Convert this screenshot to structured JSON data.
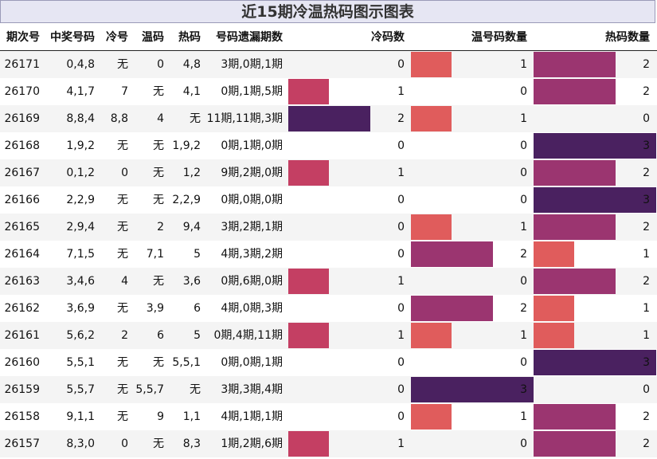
{
  "title": "近15期冷温热码图示图表",
  "colors": {
    "c1": "#e05c5c",
    "c2": "#9b3570",
    "c3": "#4a2160",
    "cold1": "#c43f63"
  },
  "chart_data": {
    "type": "table",
    "title": "近15期冷温热码图示图表",
    "columns": [
      "期次号",
      "中奖号码",
      "冷号",
      "温码",
      "热码",
      "号码遗漏期数",
      "冷码数",
      "温号码数量",
      "热码数量"
    ],
    "max_count": 3,
    "rows": [
      {
        "issue": "26171",
        "numbers": "0,4,8",
        "cold": "无",
        "warm": "0",
        "hot": "4,8",
        "miss": "3期,0期,1期",
        "cold_n": 0,
        "warm_n": 1,
        "hot_n": 2
      },
      {
        "issue": "26170",
        "numbers": "4,1,7",
        "cold": "7",
        "warm": "无",
        "hot": "4,1",
        "miss": "0期,1期,5期",
        "cold_n": 1,
        "warm_n": 0,
        "hot_n": 2
      },
      {
        "issue": "26169",
        "numbers": "8,8,4",
        "cold": "8,8",
        "warm": "4",
        "hot": "无",
        "miss": "11期,11期,3期",
        "cold_n": 2,
        "warm_n": 1,
        "hot_n": 0
      },
      {
        "issue": "26168",
        "numbers": "1,9,2",
        "cold": "无",
        "warm": "无",
        "hot": "1,9,2",
        "miss": "0期,1期,0期",
        "cold_n": 0,
        "warm_n": 0,
        "hot_n": 3
      },
      {
        "issue": "26167",
        "numbers": "0,1,2",
        "cold": "0",
        "warm": "无",
        "hot": "1,2",
        "miss": "9期,2期,0期",
        "cold_n": 1,
        "warm_n": 0,
        "hot_n": 2
      },
      {
        "issue": "26166",
        "numbers": "2,2,9",
        "cold": "无",
        "warm": "无",
        "hot": "2,2,9",
        "miss": "0期,0期,0期",
        "cold_n": 0,
        "warm_n": 0,
        "hot_n": 3
      },
      {
        "issue": "26165",
        "numbers": "2,9,4",
        "cold": "无",
        "warm": "2",
        "hot": "9,4",
        "miss": "3期,2期,1期",
        "cold_n": 0,
        "warm_n": 1,
        "hot_n": 2
      },
      {
        "issue": "26164",
        "numbers": "7,1,5",
        "cold": "无",
        "warm": "7,1",
        "hot": "5",
        "miss": "4期,3期,2期",
        "cold_n": 0,
        "warm_n": 2,
        "hot_n": 1
      },
      {
        "issue": "26163",
        "numbers": "3,4,6",
        "cold": "4",
        "warm": "无",
        "hot": "3,6",
        "miss": "0期,6期,0期",
        "cold_n": 1,
        "warm_n": 0,
        "hot_n": 2
      },
      {
        "issue": "26162",
        "numbers": "3,6,9",
        "cold": "无",
        "warm": "3,9",
        "hot": "6",
        "miss": "4期,0期,3期",
        "cold_n": 0,
        "warm_n": 2,
        "hot_n": 1
      },
      {
        "issue": "26161",
        "numbers": "5,6,2",
        "cold": "2",
        "warm": "6",
        "hot": "5",
        "miss": "0期,4期,11期",
        "cold_n": 1,
        "warm_n": 1,
        "hot_n": 1
      },
      {
        "issue": "26160",
        "numbers": "5,5,1",
        "cold": "无",
        "warm": "无",
        "hot": "5,5,1",
        "miss": "0期,0期,1期",
        "cold_n": 0,
        "warm_n": 0,
        "hot_n": 3
      },
      {
        "issue": "26159",
        "numbers": "5,5,7",
        "cold": "无",
        "warm": "5,5,7",
        "hot": "无",
        "miss": "3期,3期,4期",
        "cold_n": 0,
        "warm_n": 3,
        "hot_n": 0
      },
      {
        "issue": "26158",
        "numbers": "9,1,1",
        "cold": "无",
        "warm": "9",
        "hot": "1,1",
        "miss": "4期,1期,1期",
        "cold_n": 0,
        "warm_n": 1,
        "hot_n": 2
      },
      {
        "issue": "26157",
        "numbers": "8,3,0",
        "cold": "0",
        "warm": "无",
        "hot": "8,3",
        "miss": "1期,2期,6期",
        "cold_n": 1,
        "warm_n": 0,
        "hot_n": 2
      }
    ]
  }
}
